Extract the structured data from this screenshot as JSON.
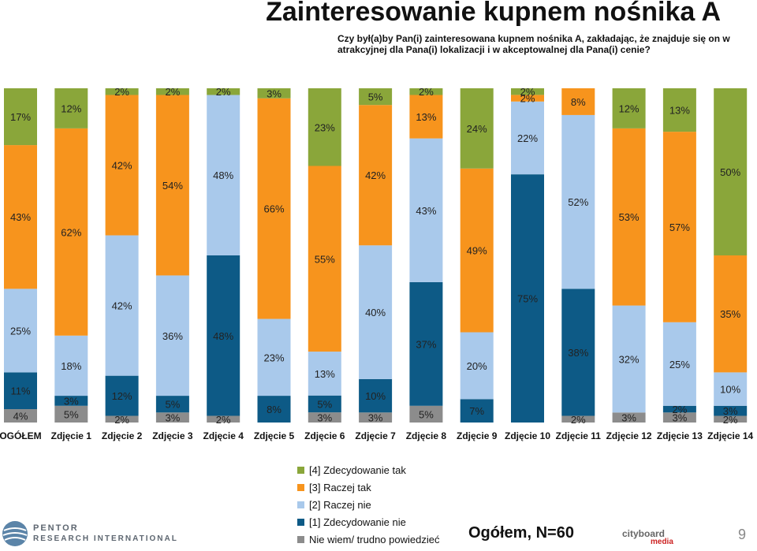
{
  "title": "Zainteresowanie kupnem nośnika A",
  "question": "Czy był(a)by Pan(i) zainteresowana kupnem nośnika A, zakładając, że znajduje się on w atrakcyjnej dla Pana(i) lokalizacji i w akceptowalnej dla Pana(i) cenie?",
  "total_label": "Ogółem, N=60",
  "page_number": "9",
  "logos": {
    "pentor_line1": "PENTOR",
    "pentor_line2": "RESEARCH INTERNATIONAL",
    "cityboard_line1": "cityboard",
    "cityboard_line2": "media"
  },
  "colors": {
    "s4": "#8aa63a",
    "s3": "#f7941d",
    "s2": "#a9c9eb",
    "s1": "#0d5a86",
    "s0": "#8c8c8c"
  },
  "chart_data": {
    "type": "bar",
    "stacked": true,
    "normalized": true,
    "legend_position": "bottom-center",
    "categories": [
      "OGÓŁEM",
      "Zdjęcie 1",
      "Zdjęcie 2",
      "Zdjęcie 3",
      "Zdjęcie 4",
      "Zdjęcie 5",
      "Zdjęcie 6",
      "Zdjęcie 7",
      "Zdjęcie 8",
      "Zdjęcie 9",
      "Zdjęcie 10",
      "Zdjęcie 11",
      "Zdjęcie 12",
      "Zdjęcie 13",
      "Zdjęcie 14"
    ],
    "series": [
      {
        "key": "s0",
        "name": "Nie wiem/ trudno powiedzieć",
        "values": [
          4,
          5,
          2,
          3,
          2,
          0,
          3,
          3,
          5,
          0,
          0,
          2,
          3,
          3,
          2
        ]
      },
      {
        "key": "s1",
        "name": "[1] Zdecydowanie nie",
        "values": [
          11,
          3,
          12,
          5,
          48,
          8,
          5,
          10,
          37,
          7,
          75,
          38,
          0,
          2,
          3
        ]
      },
      {
        "key": "s2",
        "name": "[2] Raczej nie",
        "values": [
          25,
          18,
          42,
          36,
          48,
          23,
          13,
          40,
          43,
          20,
          22,
          52,
          32,
          25,
          10
        ]
      },
      {
        "key": "s3",
        "name": "[3] Raczej tak",
        "values": [
          43,
          62,
          42,
          54,
          0,
          66,
          55,
          42,
          13,
          49,
          2,
          8,
          53,
          57,
          35
        ]
      },
      {
        "key": "s4",
        "name": "[4] Zdecydowanie tak",
        "values": [
          17,
          12,
          2,
          2,
          2,
          3,
          23,
          5,
          2,
          24,
          2,
          0,
          12,
          13,
          50
        ]
      }
    ],
    "legend_order": [
      "s4",
      "s3",
      "s2",
      "s1",
      "s0"
    ],
    "ylim": [
      0,
      100
    ],
    "value_suffix": "%"
  }
}
